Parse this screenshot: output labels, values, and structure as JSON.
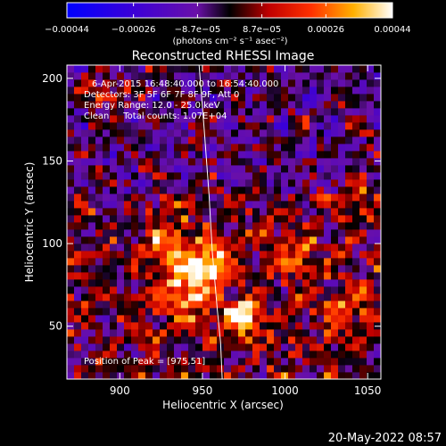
{
  "chart_data": {
    "type": "heatmap",
    "title": "Reconstructed RHESSI Image",
    "xlabel": "Heliocentric X (arcsec)",
    "ylabel": "Heliocentric Y (arcsec)",
    "xlim": [
      868,
      1058
    ],
    "ylim": [
      18,
      208
    ],
    "x_ticks": [
      {
        "value": 900,
        "label": "900"
      },
      {
        "value": 950,
        "label": "950"
      },
      {
        "value": 1000,
        "label": "1000"
      },
      {
        "value": 1050,
        "label": "1050"
      }
    ],
    "y_ticks": [
      {
        "value": 50,
        "label": "50"
      },
      {
        "value": 100,
        "label": "100"
      },
      {
        "value": 150,
        "label": "150"
      },
      {
        "value": 200,
        "label": "200"
      }
    ],
    "info_lines": [
      "6-Apr-2015 16:48:40.000 to 16:54:40.000",
      "Detectors: 3F 5F 6F 7F 8F 9F, Att 0",
      "Energy Range: 12.0 - 25.0 keV",
      "Clean     Total counts: 1.07E+04"
    ],
    "peak_label": "Position of Peak = [975,51]",
    "peak": {
      "x": 975,
      "y": 51
    },
    "limb_points": [
      [
        948,
        208
      ],
      [
        951,
        170
      ],
      [
        954,
        130
      ],
      [
        956,
        95
      ],
      [
        959,
        60
      ],
      [
        961,
        40
      ],
      [
        962,
        18
      ]
    ],
    "sources": [
      {
        "x": 975,
        "y": 56,
        "intensity": 1.0,
        "sx": 8,
        "sy": 7
      },
      {
        "x": 953,
        "y": 88,
        "intensity": 0.75,
        "sx": 10,
        "sy": 9
      },
      {
        "x": 940,
        "y": 72,
        "intensity": 0.55,
        "sx": 14,
        "sy": 12
      },
      {
        "x": 930,
        "y": 100,
        "intensity": 0.45,
        "sx": 10,
        "sy": 12
      },
      {
        "x": 1005,
        "y": 92,
        "intensity": 0.35,
        "sx": 10,
        "sy": 10
      },
      {
        "x": 1040,
        "y": 58,
        "intensity": 0.35,
        "sx": 10,
        "sy": 10
      },
      {
        "x": 890,
        "y": 190,
        "intensity": 0.3,
        "sx": 10,
        "sy": 8
      },
      {
        "x": 1045,
        "y": 135,
        "intensity": 0.3,
        "sx": 8,
        "sy": 10
      }
    ],
    "colorbar": {
      "range": [
        -0.00044,
        0.00044
      ],
      "ticks": [
        {
          "value": -0.00044,
          "label": "−0.00044"
        },
        {
          "value": -0.00026,
          "label": "−0.00026"
        },
        {
          "value": -8.7e-05,
          "label": "−8.7e−05"
        },
        {
          "value": 8.7e-05,
          "label": "8.7e−05"
        },
        {
          "value": 0.00026,
          "label": "0.00026"
        },
        {
          "value": 0.00044,
          "label": "0.00044"
        }
      ],
      "units": "(photons cm⁻² s⁻¹ asec⁻²)"
    },
    "date_stamp": "20-May-2022 08:57"
  }
}
